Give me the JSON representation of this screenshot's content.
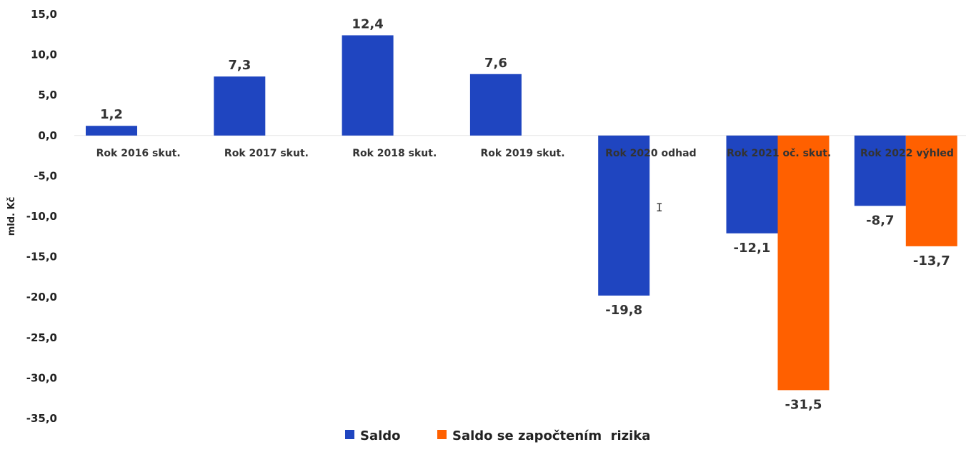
{
  "chart_data": {
    "type": "bar",
    "categories": [
      "Rok 2016 skut.",
      "Rok 2017 skut.",
      "Rok 2018 skut.",
      "Rok 2019 skut.",
      "Rok 2020 odhad",
      "Rok 2021 oč. skut.",
      "Rok 2022 výhled"
    ],
    "series": [
      {
        "name": "Saldo",
        "color": "#1f45c0",
        "values": [
          1.2,
          7.3,
          12.4,
          7.6,
          -19.8,
          -12.1,
          -8.7
        ],
        "labels": [
          "1,2",
          "7,3",
          "12,4",
          "7,6",
          "-19,8",
          "-12,1",
          "-8,7"
        ]
      },
      {
        "name": "Saldo se započtením  rizika",
        "color": "#ff6000",
        "values": [
          null,
          null,
          null,
          null,
          null,
          -31.5,
          -13.7
        ],
        "labels": [
          "",
          "",
          "",
          "",
          "",
          "-31,5",
          "-13,7"
        ]
      }
    ],
    "ylabel": "mld. Kč",
    "ylim": [
      -35,
      15
    ],
    "yticks": [
      15,
      10,
      5,
      0,
      -5,
      -10,
      -15,
      -20,
      -25,
      -30,
      -35
    ],
    "ytick_labels": [
      "15,0",
      "10,0",
      "5,0",
      "0,0",
      "-5,0",
      "-10,0",
      "-15,0",
      "-20,0",
      "-25,0",
      "-30,0",
      "-35,0"
    ],
    "legend_position": "bottom",
    "grid": false
  }
}
